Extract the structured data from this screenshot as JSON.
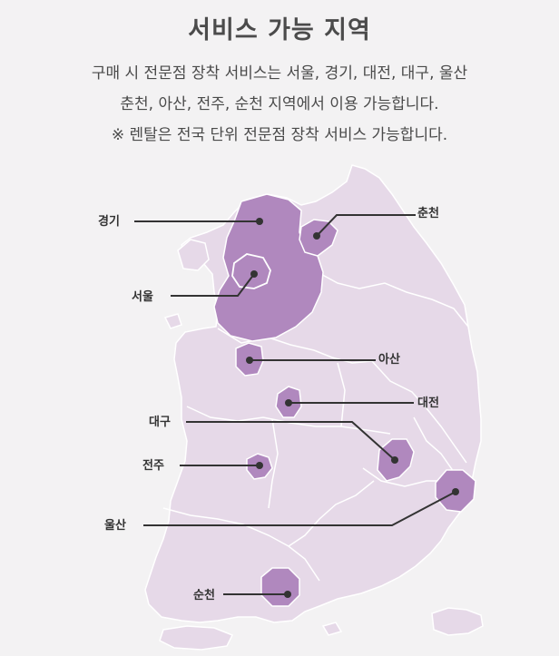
{
  "header": {
    "title": "서비스 가능 지역",
    "description_lines": [
      "구매 시 전문점 장착 서비스는 서울, 경기, 대전, 대구, 울산",
      "춘천, 아산, 전주, 순천 지역에서 이용 가능합니다.",
      "※ 렌탈은 전국 단위 전문점 장착 서비스 가능합니다."
    ]
  },
  "map": {
    "regions": [
      {
        "key": "gyeonggi",
        "label": "경기"
      },
      {
        "key": "chuncheon",
        "label": "춘천"
      },
      {
        "key": "seoul",
        "label": "서울"
      },
      {
        "key": "asan",
        "label": "아산"
      },
      {
        "key": "daejeon",
        "label": "대전"
      },
      {
        "key": "daegu",
        "label": "대구"
      },
      {
        "key": "jeonju",
        "label": "전주"
      },
      {
        "key": "ulsan",
        "label": "울산"
      },
      {
        "key": "suncheon",
        "label": "순천"
      }
    ]
  },
  "colors": {
    "background": "#f3f2f3",
    "land": "#e6d9e8",
    "land_border": "#ffffff",
    "highlight": "#b088be",
    "highlight_border": "#ffffff",
    "leader_line": "#333333",
    "title": "#4b4b4b",
    "text": "#4a4a4a"
  }
}
